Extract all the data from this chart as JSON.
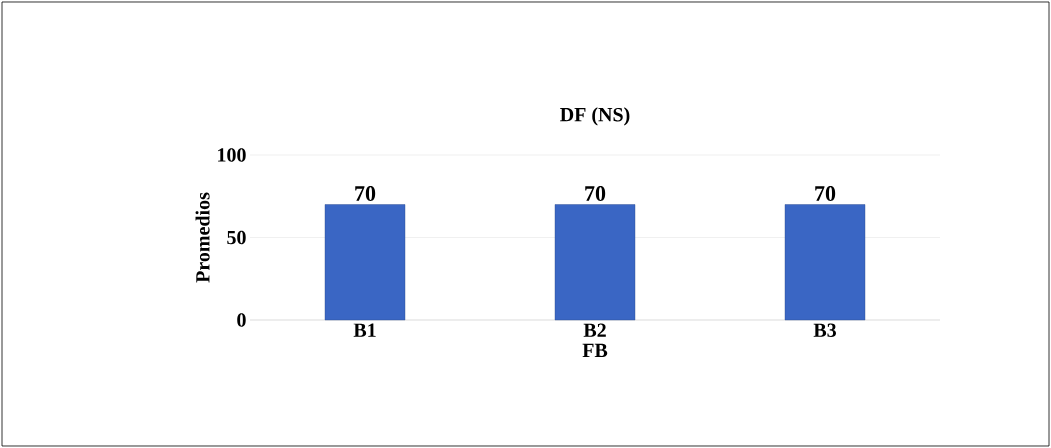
{
  "chart_data": {
    "type": "bar",
    "title": "DF (NS)",
    "xlabel": "FB",
    "ylabel": "Promedios",
    "categories": [
      "B1",
      "B2",
      "B3"
    ],
    "values": [
      70,
      70,
      70
    ],
    "color": "#3a66c4",
    "ylim": [
      0,
      100
    ],
    "yticks": [
      0,
      50,
      100
    ],
    "grid": "y",
    "data_labels": true
  }
}
